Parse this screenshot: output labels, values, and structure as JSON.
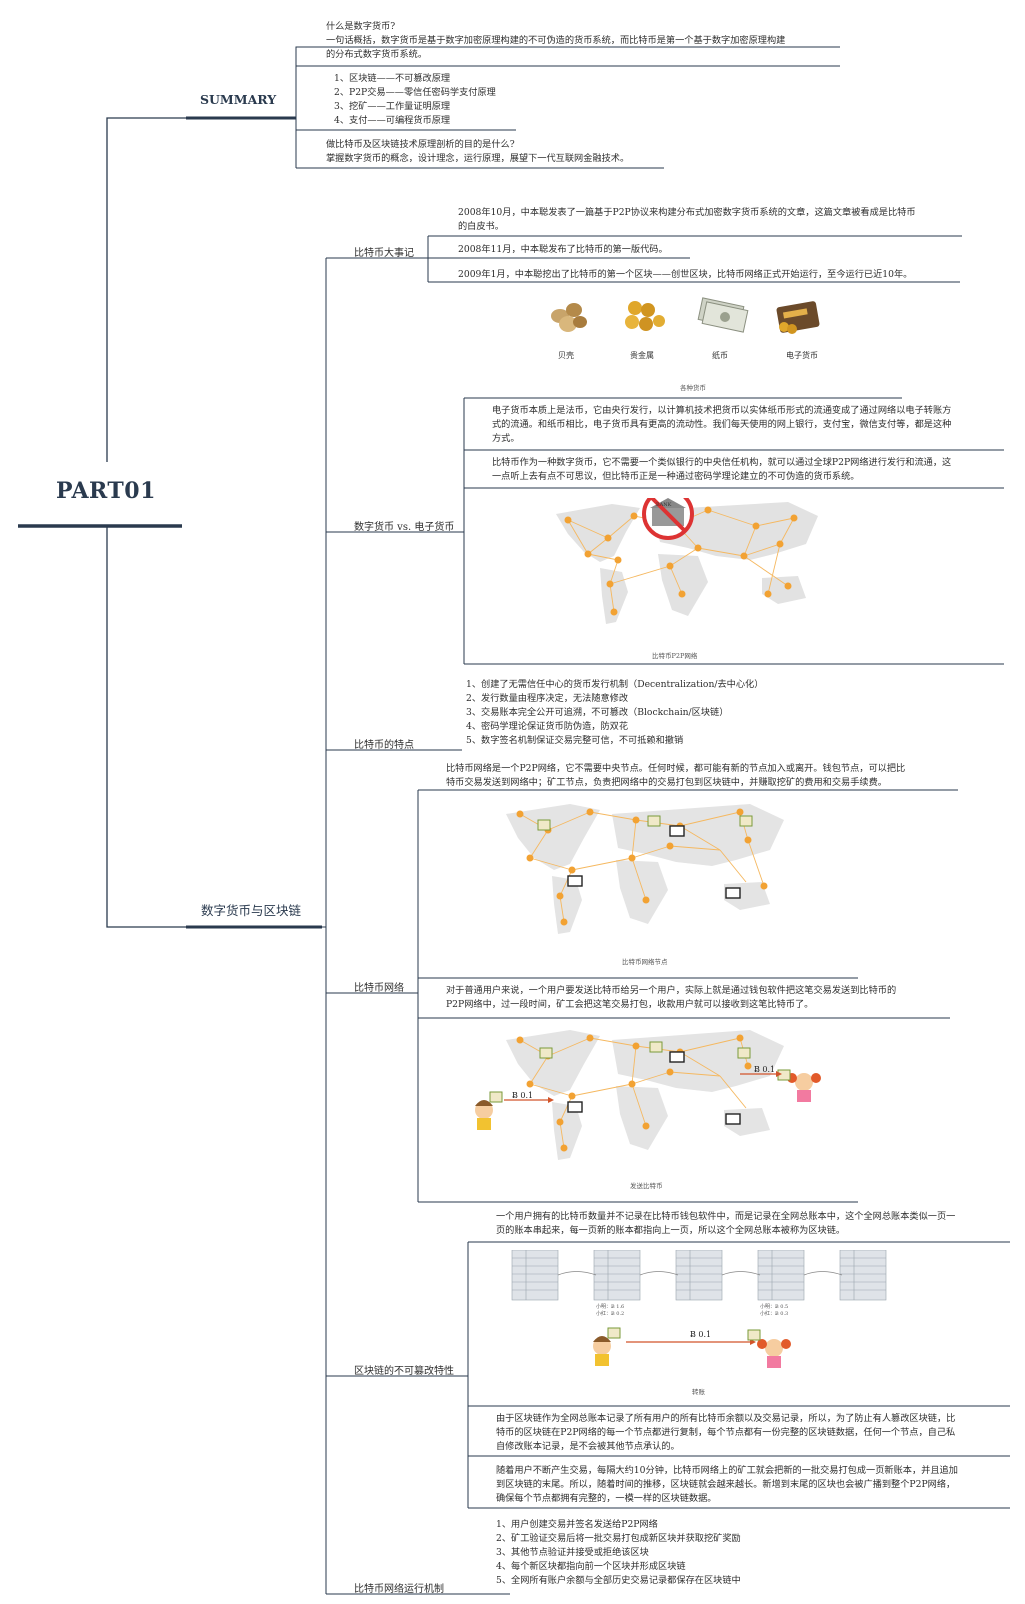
{
  "root": "PART01",
  "summary": {
    "title": "SUMMARY",
    "q1": [
      "什么是数字货币?",
      "一句话概括，数字货币是基于数字加密原理构建的不可伪造的货币系统，而比特币是第一个基于数字加密原理构建",
      "的分布式数字货币系统。"
    ],
    "list": [
      "1、区块链——不可篡改原理",
      "2、P2P交易——零信任密码学支付原理",
      "3、挖矿——工作量证明原理",
      "4、支付——可编程货币原理"
    ],
    "q2": [
      "做比特币及区块链技术原理剖析的目的是什么?",
      "掌握数字货币的概念，设计理念，运行原理，展望下一代互联网金融技术。"
    ]
  },
  "main_branch": "数字货币与区块链",
  "events": {
    "label": "比特币大事记",
    "items": [
      [
        "2008年10月，中本聪发表了一篇基于P2P协议来构建分布式加密数字货币系统的文章，这篇文章被看成是比特币",
        "的白皮书。"
      ],
      [
        "2008年11月，中本聪发布了比特币的第一版代码。"
      ],
      [
        "2009年1月，中本聪挖出了比特币的第一个区块——创世区块，比特币网络正式开始运行，至今运行已近10年。"
      ]
    ]
  },
  "currency": {
    "label": "数字货币 vs. 电子货币",
    "icons": [
      "贝壳",
      "贵金属",
      "纸币",
      "电子货币"
    ],
    "icons_caption": "各种货币",
    "p1": [
      "电子货币本质上是法币，它由央行发行，以计算机技术把货币以实体纸币形式的流通变成了通过网络以电子转账方",
      "式的流通。和纸币相比，电子货币具有更高的流动性。我们每天使用的网上银行，支付宝，微信支付等，都是这种",
      "方式。"
    ],
    "p2": [
      "比特币作为一种数字货币，它不需要一个类似银行的中央信任机构，就可以通过全球P2P网络进行发行和流通，这",
      "一点听上去有点不可思议，但比特币正是一种通过密码学理论建立的不可伪造的货币系统。"
    ],
    "map_caption": "比特币P2P网络",
    "bank_text": "BANK"
  },
  "features": {
    "label": "比特币的特点",
    "items": [
      "1、创建了无需信任中心的货币发行机制（Decentralization/去中心化）",
      "2、发行数量由程序决定，无法随意修改",
      "3、交易账本完全公开可追溯，不可篡改（Blockchain/区块链）",
      "4、密码学理论保证货币防伪造，防双花",
      "5、数字签名机制保证交易完整可信，不可抵赖和撤销"
    ]
  },
  "network": {
    "label": "比特币网络",
    "p1": [
      "比特币网络是一个P2P网络，它不需要中央节点。任何时候，都可能有新的节点加入或离开。钱包节点，可以把比",
      "特币交易发送到网络中；矿工节点，负责把网络中的交易打包到区块链中，并赚取挖矿的费用和交易手续费。"
    ],
    "map1_caption": "比特币网络节点",
    "p2": [
      "对于普通用户来说，一个用户要发送比特币给另一个用户，实际上就是通过钱包软件把这笔交易发送到比特币的",
      "P2P网络中，过一段时间，矿工会把这笔交易打包，收款用户就可以接收到这笔比特币了。"
    ],
    "map2_caption": "发送比特币",
    "amount_left": "Ƀ 0.1",
    "amount_right": "Ƀ 0.1"
  },
  "immutable": {
    "label": "区块链的不可篡改特性",
    "p0": [
      "一个用户拥有的比特币数量并不记录在比特币钱包软件中，而是记录在全网总账本中，这个全网总账本类似一页一",
      "页的账本串起来，每一页新的账本都指向上一页，所以这个全网总账本被称为区块链。"
    ],
    "ledger_notes": [
      "小明：Ƀ 1.6",
      "小红：Ƀ 0.2",
      "小明：Ƀ 0.5",
      "小红：Ƀ 0.3"
    ],
    "amount": "Ƀ 0.1",
    "transfer_caption": "转账",
    "p1": [
      "由于区块链作为全网总账本记录了所有用户的所有比特币余额以及交易记录，所以，为了防止有人篡改区块链，比",
      "特币的区块链在P2P网络的每一个节点都进行复制，每个节点都有一份完整的区块链数据，任何一个节点，自己私",
      "自修改账本记录，是不会被其他节点承认的。"
    ],
    "p2": [
      "随着用户不断产生交易，每隔大约10分钟，比特币网络上的矿工就会把新的一批交易打包成一页新账本，并且追加",
      "到区块链的末尾。所以，随着时间的推移，区块链就会越来越长。新增到末尾的区块也会被广播到整个P2P网络，",
      "确保每个节点都拥有完整的，一模一样的区块链数据。"
    ]
  },
  "mechanism": {
    "label": "比特币网络运行机制",
    "items": [
      "1、用户创建交易并签名发送给P2P网络",
      "2、矿工验证交易后将一批交易打包成新区块并获取挖矿奖励",
      "3、其他节点验证并接受或拒绝该区块",
      "4、每个新区块都指向前一个区块并形成区块链",
      "5、全网所有账户余额与全部历史交易记录都保存在区块链中"
    ]
  },
  "colors": {
    "line": "#2a3a4e",
    "node": "#f2a233",
    "edge": "#f5b860",
    "land": "#e2e2e2"
  }
}
